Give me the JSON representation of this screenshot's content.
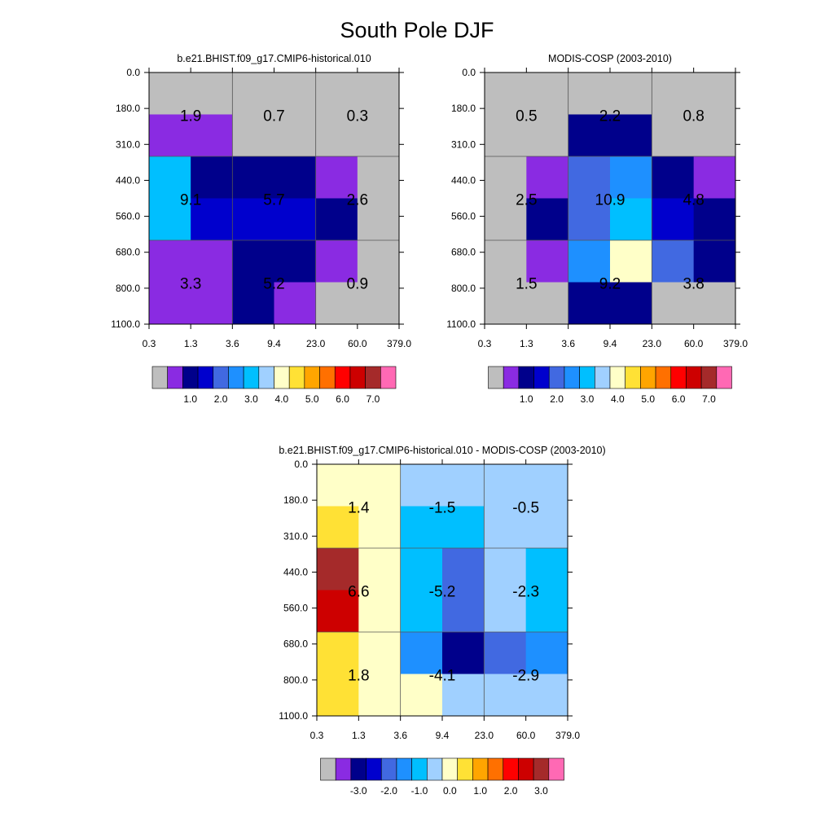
{
  "title": "South Pole DJF",
  "palette": {
    "grey": "#bebebe",
    "violet": "#8a2be2",
    "navy": "#00008b",
    "blue": "#0000cd",
    "royal": "#4169e1",
    "dodger": "#1e90ff",
    "sky": "#00bfff",
    "lightblue": "#a0d0ff",
    "cream": "#ffffc8",
    "gold": "#ffe135",
    "orange": "#ffa500",
    "darkorange": "#ff7000",
    "red": "#ff0000",
    "crimson": "#cd0000",
    "brown": "#a52a2a",
    "pink": "#ff69b4",
    "gridline": "#555555"
  },
  "chart_data": [
    {
      "type": "heatmap",
      "title": "b.e21.BHIST.f09_g17.CMIP6-historical.010",
      "x_ticks": [
        "0.3",
        "1.3",
        "3.6",
        "9.4",
        "23.0",
        "60.0",
        "379.0"
      ],
      "y_ticks": [
        "0.0",
        "180.0",
        "310.0",
        "440.0",
        "560.0",
        "680.0",
        "800.0",
        "1100.0"
      ],
      "cells": [
        [
          "grey",
          "grey",
          "grey",
          "grey",
          "grey",
          "grey"
        ],
        [
          "violet",
          "violet",
          "grey",
          "grey",
          "grey",
          "grey"
        ],
        [
          "sky",
          "navy",
          "navy",
          "navy",
          "violet",
          "grey"
        ],
        [
          "sky",
          "blue",
          "blue",
          "blue",
          "navy",
          "grey"
        ],
        [
          "violet",
          "violet",
          "navy",
          "navy",
          "violet",
          "grey"
        ],
        [
          "violet",
          "violet",
          "navy",
          "violet",
          "grey",
          "grey"
        ]
      ],
      "box_values": [
        [
          "1.9",
          "0.7",
          "0.3"
        ],
        [
          "9.1",
          "5.7",
          "2.6"
        ],
        [
          "3.3",
          "5.2",
          "0.9"
        ]
      ],
      "colorbar": {
        "colors": [
          "grey",
          "violet",
          "navy",
          "blue",
          "royal",
          "dodger",
          "sky",
          "lightblue",
          "cream",
          "gold",
          "orange",
          "darkorange",
          "red",
          "crimson",
          "brown",
          "pink"
        ],
        "labels": [
          "1.0",
          "2.0",
          "3.0",
          "4.0",
          "5.0",
          "6.0",
          "7.0"
        ]
      }
    },
    {
      "type": "heatmap",
      "title": "MODIS-COSP (2003-2010)",
      "x_ticks": [
        "0.3",
        "1.3",
        "3.6",
        "9.4",
        "23.0",
        "60.0",
        "379.0"
      ],
      "y_ticks": [
        "0.0",
        "180.0",
        "310.0",
        "440.0",
        "560.0",
        "680.0",
        "800.0",
        "1100.0"
      ],
      "cells": [
        [
          "grey",
          "grey",
          "grey",
          "grey",
          "grey",
          "grey"
        ],
        [
          "grey",
          "grey",
          "navy",
          "navy",
          "grey",
          "grey"
        ],
        [
          "grey",
          "violet",
          "royal",
          "dodger",
          "navy",
          "violet"
        ],
        [
          "grey",
          "navy",
          "royal",
          "sky",
          "blue",
          "navy"
        ],
        [
          "grey",
          "violet",
          "dodger",
          "cream",
          "royal",
          "navy"
        ],
        [
          "grey",
          "grey",
          "navy",
          "navy",
          "grey",
          "grey"
        ]
      ],
      "box_values": [
        [
          "0.5",
          "2.2",
          "0.8"
        ],
        [
          "2.5",
          "10.9",
          "4.8"
        ],
        [
          "1.5",
          "9.2",
          "3.8"
        ]
      ],
      "colorbar": {
        "colors": [
          "grey",
          "violet",
          "navy",
          "blue",
          "royal",
          "dodger",
          "sky",
          "lightblue",
          "cream",
          "gold",
          "orange",
          "darkorange",
          "red",
          "crimson",
          "brown",
          "pink"
        ],
        "labels": [
          "1.0",
          "2.0",
          "3.0",
          "4.0",
          "5.0",
          "6.0",
          "7.0"
        ]
      }
    },
    {
      "type": "heatmap",
      "title": "b.e21.BHIST.f09_g17.CMIP6-historical.010 - MODIS-COSP (2003-2010)",
      "x_ticks": [
        "0.3",
        "1.3",
        "3.6",
        "9.4",
        "23.0",
        "60.0",
        "379.0"
      ],
      "y_ticks": [
        "0.0",
        "180.0",
        "310.0",
        "440.0",
        "560.0",
        "680.0",
        "800.0",
        "1100.0"
      ],
      "cells": [
        [
          "cream",
          "cream",
          "lightblue",
          "lightblue",
          "lightblue",
          "lightblue"
        ],
        [
          "gold",
          "cream",
          "sky",
          "sky",
          "lightblue",
          "lightblue"
        ],
        [
          "brown",
          "cream",
          "sky",
          "royal",
          "lightblue",
          "sky"
        ],
        [
          "crimson",
          "cream",
          "sky",
          "royal",
          "lightblue",
          "sky"
        ],
        [
          "gold",
          "cream",
          "dodger",
          "navy",
          "royal",
          "dodger"
        ],
        [
          "gold",
          "cream",
          "cream",
          "lightblue",
          "lightblue",
          "lightblue"
        ]
      ],
      "box_values": [
        [
          "1.4",
          "-1.5",
          "-0.5"
        ],
        [
          "6.6",
          "-5.2",
          "-2.3"
        ],
        [
          "1.8",
          "-4.1",
          "-2.9"
        ]
      ],
      "colorbar": {
        "colors": [
          "grey",
          "violet",
          "navy",
          "blue",
          "royal",
          "dodger",
          "sky",
          "lightblue",
          "cream",
          "gold",
          "orange",
          "darkorange",
          "red",
          "crimson",
          "brown",
          "pink"
        ],
        "labels": [
          "-3.0",
          "-2.0",
          "-1.0",
          "0.0",
          "1.0",
          "2.0",
          "3.0"
        ]
      }
    }
  ]
}
